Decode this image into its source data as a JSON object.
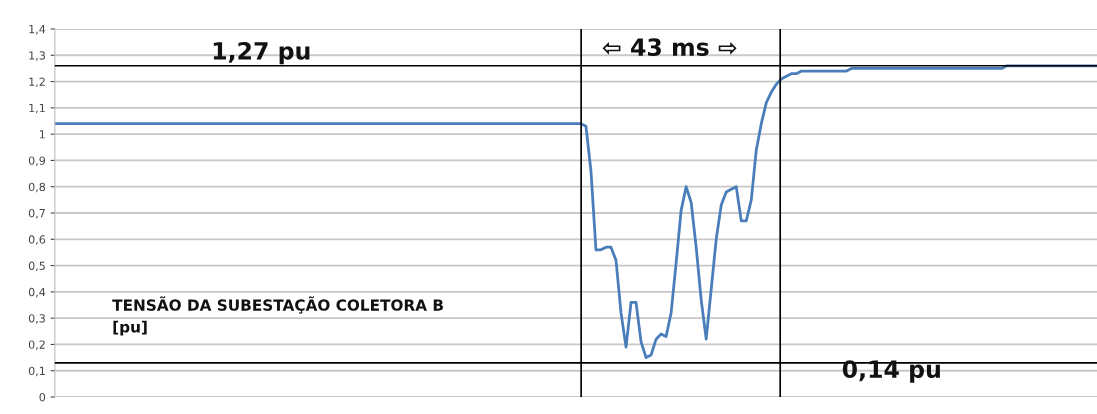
{
  "chart_data": {
    "type": "line",
    "categories": [
      null,
      null,
      null,
      null,
      null,
      null,
      null,
      null,
      null,
      null,
      null,
      null,
      null,
      null,
      null,
      null,
      null,
      null,
      null,
      null,
      null,
      null,
      null,
      null,
      null,
      null,
      null,
      null,
      null,
      null,
      null,
      null,
      null,
      null,
      null,
      null,
      null,
      null,
      null,
      null,
      null,
      null,
      null,
      null,
      null,
      null,
      null,
      null,
      null,
      null,
      null,
      null,
      null,
      null,
      null,
      null,
      null,
      null,
      null,
      null,
      null,
      null,
      null,
      null,
      null,
      null,
      null,
      null,
      null,
      null,
      null,
      null,
      null,
      null,
      null,
      null,
      null,
      null,
      null,
      null,
      null,
      null,
      null,
      null,
      null,
      null,
      null,
      null,
      null,
      null,
      null,
      null,
      null,
      null,
      null,
      null,
      null,
      null,
      null,
      null,
      null,
      null,
      null,
      null,
      null,
      null,
      null,
      null,
      null,
      null,
      null,
      null,
      null,
      null,
      null,
      null,
      null,
      null,
      null,
      null,
      null,
      null,
      null,
      null,
      null,
      null,
      null,
      null,
      null,
      null,
      null,
      null,
      null,
      null,
      null,
      null,
      null,
      null,
      null,
      null,
      null,
      null,
      null,
      null,
      null,
      null,
      null,
      null,
      null,
      null,
      null,
      null,
      null,
      null,
      null,
      null,
      null,
      null,
      null,
      null,
      null,
      null,
      null,
      null,
      null,
      null,
      null,
      null,
      null,
      null,
      null,
      null,
      null,
      null,
      null,
      null,
      null,
      null,
      null,
      null,
      null,
      null,
      null,
      null,
      null,
      null,
      null,
      null,
      null,
      null,
      null,
      null,
      null,
      null,
      null,
      null,
      null,
      null,
      null,
      null,
      null,
      null,
      null,
      null,
      null,
      null,
      null,
      null,
      null
    ],
    "series": [
      {
        "color": "#4a7ebb",
        "values": [
          1.04,
          1.04,
          1.04,
          1.04,
          1.04,
          1.04,
          1.04,
          1.04,
          1.04,
          1.04,
          1.04,
          1.04,
          1.04,
          1.04,
          1.04,
          1.04,
          1.04,
          1.04,
          1.04,
          1.04,
          1.04,
          1.04,
          1.04,
          1.04,
          1.04,
          1.04,
          1.04,
          1.04,
          1.04,
          1.04,
          1.04,
          1.04,
          1.04,
          1.04,
          1.04,
          1.04,
          1.04,
          1.04,
          1.04,
          1.04,
          1.04,
          1.04,
          1.04,
          1.04,
          1.04,
          1.04,
          1.04,
          1.04,
          1.04,
          1.04,
          1.04,
          1.04,
          1.04,
          1.04,
          1.04,
          1.04,
          1.04,
          1.04,
          1.04,
          1.04,
          1.04,
          1.04,
          1.04,
          1.04,
          1.04,
          1.04,
          1.04,
          1.04,
          1.04,
          1.04,
          1.04,
          1.04,
          1.04,
          1.04,
          1.04,
          1.04,
          1.04,
          1.04,
          1.04,
          1.04,
          1.04,
          1.04,
          1.04,
          1.04,
          1.04,
          1.04,
          1.04,
          1.04,
          1.04,
          1.04,
          1.04,
          1.04,
          1.04,
          1.04,
          1.04,
          1.04,
          1.04,
          1.04,
          1.04,
          1.04,
          1.04,
          1.04,
          1.04,
          1.04,
          1.04,
          1.04,
          1.03,
          0.86,
          0.56,
          0.56,
          0.57,
          0.57,
          0.52,
          0.32,
          0.19,
          0.36,
          0.36,
          0.21,
          0.15,
          0.16,
          0.22,
          0.24,
          0.23,
          0.32,
          0.51,
          0.71,
          0.8,
          0.74,
          0.57,
          0.37,
          0.22,
          0.41,
          0.6,
          0.73,
          0.78,
          0.79,
          0.8,
          0.67,
          0.67,
          0.75,
          0.94,
          1.04,
          1.12,
          1.16,
          1.19,
          1.21,
          1.22,
          1.23,
          1.23,
          1.24,
          1.24,
          1.24,
          1.24,
          1.24,
          1.24,
          1.24,
          1.24,
          1.24,
          1.24,
          1.25,
          1.25,
          1.25,
          1.25,
          1.25,
          1.25,
          1.25,
          1.25,
          1.25,
          1.25,
          1.25,
          1.25,
          1.25,
          1.25,
          1.25,
          1.25,
          1.25,
          1.25,
          1.25,
          1.25,
          1.25,
          1.25,
          1.25,
          1.25,
          1.25,
          1.25,
          1.25,
          1.25,
          1.25,
          1.25,
          1.25,
          1.26,
          1.26,
          1.26,
          1.26,
          1.26,
          1.26,
          1.26,
          1.26,
          1.26,
          1.26,
          1.26,
          1.26,
          1.26,
          1.26,
          1.26,
          1.26,
          1.26,
          1.26,
          1.26
        ]
      }
    ],
    "ylim": [
      0,
      1.4
    ],
    "yticks": [
      0,
      {
        "value": 0.1,
        "label": "0,1"
      },
      {
        "value": 0.2,
        "label": "0,2"
      },
      {
        "value": 0.3,
        "label": "0,3"
      },
      {
        "value": 0.4,
        "label": "0,4"
      },
      {
        "value": 0.5,
        "label": "0,5"
      },
      {
        "value": 0.6,
        "label": "0,6"
      },
      {
        "value": 0.7,
        "label": "0,7"
      },
      {
        "value": 0.8,
        "label": "0,8"
      },
      {
        "value": 0.9,
        "label": "0,9"
      },
      1,
      {
        "value": 1.1,
        "label": "1,1"
      },
      {
        "value": 1.2,
        "label": "1,2"
      },
      {
        "value": 1.3,
        "label": "1,3"
      },
      {
        "value": 1.4,
        "label": "1,4"
      }
    ],
    "tick_labels": "y",
    "grid": "y",
    "ref_lines": [
      {
        "axis": "y",
        "value": 1.26,
        "color": "#000000"
      },
      {
        "axis": "y",
        "value": 0.13,
        "color": "#000000"
      }
    ],
    "annotations": [
      "1,27 pu",
      "⇦ 43 ms ⇨",
      "0,14 pu",
      "TENSÃO DA SUBESTAÇÃO COLETORA B\n[pu]"
    ]
  }
}
